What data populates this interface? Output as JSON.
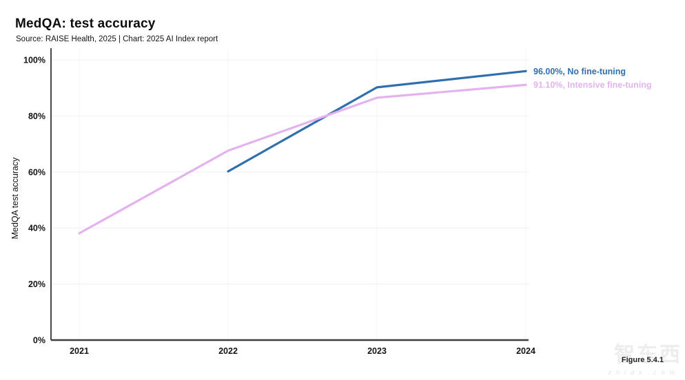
{
  "header": {
    "title": "MedQA: test accuracy",
    "subtitle": "Source: RAISE Health, 2025 | Chart: 2025 AI Index report"
  },
  "footer": {
    "figure_label": "Figure 5.4.1",
    "watermark_cn": "智东西",
    "watermark_en": "zhidx.com"
  },
  "colors": {
    "no_fine_tuning": "#2f6fad",
    "intensive_fine_tuning": "#e3b2ef",
    "grid_horizontal": "#efefef",
    "grid_vertical": "#f6f4f6",
    "y_axis": "#1a1a1a",
    "x_axis": "#3d3d3d",
    "tick_text": "#141414"
  },
  "chart_data": {
    "type": "line",
    "title": "MedQA: test accuracy",
    "subtitle": "Source: RAISE Health, 2025 | Chart: 2025 AI Index report",
    "xlabel": "",
    "ylabel": "MedQA test accuracy",
    "x": [
      2021,
      2022,
      2023,
      2024
    ],
    "x_tick_labels": [
      "2021",
      "2022",
      "2023",
      "2024"
    ],
    "y_ticks": [
      0,
      20,
      40,
      60,
      80,
      100
    ],
    "y_tick_labels": [
      "0%",
      "20%",
      "40%",
      "60%",
      "80%",
      "100%"
    ],
    "ylim": [
      0,
      100
    ],
    "grid": true,
    "legend_position": "end-of-line labels, right side",
    "series": [
      {
        "name": "No fine-tuning",
        "end_label": "96.00%, No fine-tuning",
        "color": "#2f6fad",
        "x": [
          2022,
          2023,
          2024
        ],
        "values": [
          60.2,
          90.2,
          96.0
        ]
      },
      {
        "name": "Intensive fine-tuning",
        "end_label": "91.10%, Intensive fine-tuning",
        "color": "#e3b2ef",
        "x": [
          2021,
          2022,
          2023,
          2024
        ],
        "values": [
          38.1,
          67.6,
          86.5,
          91.1
        ]
      }
    ]
  }
}
